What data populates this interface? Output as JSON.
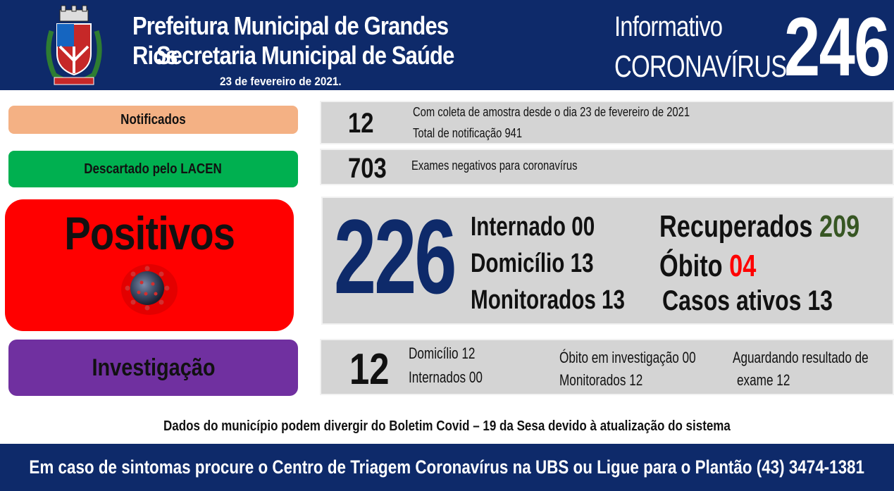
{
  "header": {
    "org_line1": "Prefeitura Municipal de Grandes Rios",
    "org_line2": "Secretaria Municipal de Saúde",
    "date": "23 de fevereiro  de 2021.",
    "info_line1": "Informativo",
    "info_line2": "CORONAVÍRUS",
    "bulletin_number": "246"
  },
  "notificados": {
    "label": "Notificados",
    "value": "12",
    "detail1": "Com coleta de amostra desde o dia 23 de fevereiro  de 2021",
    "detail2": "Total de notificação  941"
  },
  "descartado": {
    "label": "Descartado  pelo LACEN",
    "value": "703",
    "detail": "Exames negativos  para coronavírus"
  },
  "positivos": {
    "label": "Positivos",
    "value": "226",
    "internado": "Internado 00",
    "domicilio": "Domicílio 13",
    "monitorados": "Monitorados 13",
    "recuperados_label": "Recuperados",
    "recuperados_value": "209",
    "obito_label": "Óbito",
    "obito_value": "04",
    "casos_ativos": "Casos ativos 13"
  },
  "investigacao": {
    "label": "Investigação",
    "value": "12",
    "domicilio": "Domicílio 12",
    "internados": "Internados 00",
    "obito": "Óbito  em investigação  00",
    "monitorados": "Monitorados 12",
    "aguardando1": "Aguardando resultado de",
    "aguardando2": "exame 12"
  },
  "footnote": "Dados do município  podem  divergir  do Boletim  Covid  – 19 da Sesa devido à atualização  do sistema",
  "footer": "Em caso de sintomas  procure  o Centro de Triagem  Coronavírus  na UBS ou Ligue para o Plantão  (43) 3474-1381",
  "colors": {
    "header_bg": "#0e2a6a",
    "notificados": "#f4b184",
    "descartado": "#00b050",
    "positivos": "#ff0000",
    "investigacao": "#7030a0",
    "positivos_number": "#0e2a6a",
    "recuperados": "#375623",
    "obito": "#ff0000"
  },
  "icons": [
    "coat-of-arms-icon",
    "coronavirus-icon"
  ]
}
